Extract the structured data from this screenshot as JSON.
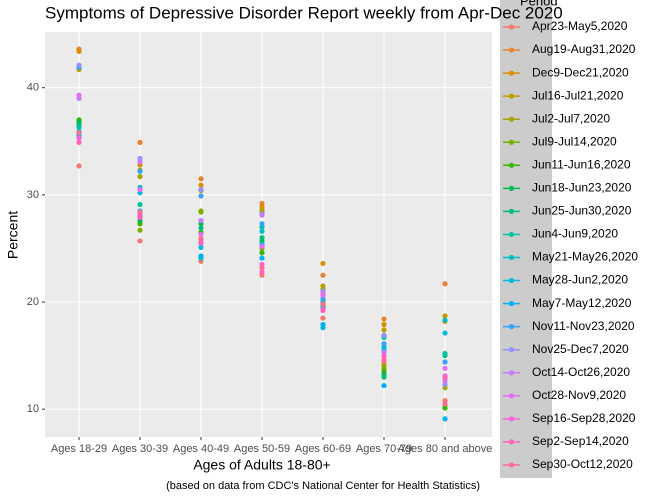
{
  "chart_data": {
    "type": "scatter",
    "title": "Symptoms of Depressive Disorder Report weekly from Apr-Dec 2020",
    "x_label": "Ages of Adults 18-80+",
    "y_label": "Percent",
    "caption": "(based on data from CDC's National Center for Health Statistics)",
    "legend_title": "Period",
    "categories": [
      "Ages 18-29",
      "Ages 30-39",
      "Ages 40-49",
      "Ages 50-59",
      "Ages 60-69",
      "Ages 70-79",
      "Ages 80 and above"
    ],
    "ylim": [
      7.4,
      45.2
    ],
    "yticks": [
      10,
      20,
      30,
      40
    ],
    "grid": true,
    "series": [
      {
        "name": "Apr23-May5,2020",
        "color": "#F8766D",
        "values": [
          32.7,
          25.7,
          23.8,
          22.5,
          18.5,
          14.2,
          10.8
        ]
      },
      {
        "name": "Aug19-Aug31,2020",
        "color": "#EA8331",
        "values": [
          43.6,
          34.9,
          31.5,
          29.2,
          22.5,
          18.4,
          21.7
        ]
      },
      {
        "name": "Dec9-Dec21,2020",
        "color": "#D89000",
        "values": [
          43.4,
          32.8,
          30.9,
          28.9,
          23.6,
          17.9,
          18.2
        ]
      },
      {
        "name": "Jul16-Jul21,2020",
        "color": "#C09B00",
        "values": [
          41.7,
          32.3,
          30.4,
          28.6,
          21.5,
          17.4,
          18.7
        ]
      },
      {
        "name": "Jul2-Jul7,2020",
        "color": "#A3A500",
        "values": [
          36.9,
          31.7,
          28.5,
          28.4,
          21.2,
          14.1,
          12.0
        ]
      },
      {
        "name": "Jul9-Jul14,2020",
        "color": "#7CAE00",
        "values": [
          36.6,
          26.7,
          28.4,
          25.0,
          20.3,
          13.8,
          10.4
        ]
      },
      {
        "name": "Jun11-Jun16,2020",
        "color": "#39B600",
        "values": [
          37.0,
          27.3,
          26.5,
          24.6,
          19.6,
          13.5,
          10.1
        ]
      },
      {
        "name": "Jun18-Jun23,2020",
        "color": "#00BB4E",
        "values": [
          36.8,
          27.6,
          27.3,
          25.7,
          19.9,
          13.2,
          13.1
        ]
      },
      {
        "name": "Jun25-Jun30,2020",
        "color": "#00BF7D",
        "values": [
          36.5,
          28.0,
          26.9,
          26.0,
          20.0,
          13.0,
          15.0
        ]
      },
      {
        "name": "Jun4-Jun9,2020",
        "color": "#00C1A3",
        "values": [
          36.3,
          29.1,
          24.2,
          27.0,
          19.5,
          16.7,
          15.2
        ]
      },
      {
        "name": "May21-May26,2020",
        "color": "#00BFC4",
        "values": [
          35.9,
          30.7,
          24.1,
          26.6,
          19.4,
          15.8,
          18.3
        ]
      },
      {
        "name": "May28-Jun2,2020",
        "color": "#00BAE0",
        "values": [
          35.6,
          30.2,
          25.1,
          25.4,
          17.6,
          15.5,
          17.1
        ]
      },
      {
        "name": "May7-May12,2020",
        "color": "#00B0F6",
        "values": [
          35.4,
          28.5,
          24.3,
          24.1,
          17.9,
          12.2,
          9.1
        ]
      },
      {
        "name": "Nov11-Nov23,2020",
        "color": "#35A2FF",
        "values": [
          41.9,
          32.2,
          29.9,
          27.3,
          20.3,
          16.1,
          14.4
        ]
      },
      {
        "name": "Nov25-Dec7,2020",
        "color": "#9590FF",
        "values": [
          42.1,
          33.4,
          30.5,
          28.2,
          21.0,
          16.9,
          12.3
        ]
      },
      {
        "name": "Oct14-Oct26,2020",
        "color": "#C77CFF",
        "values": [
          39.0,
          33.1,
          27.6,
          28.1,
          20.6,
          15.3,
          12.6
        ]
      },
      {
        "name": "Oct28-Nov9,2020",
        "color": "#E76BF3",
        "values": [
          39.3,
          30.5,
          26.3,
          25.2,
          20.8,
          14.9,
          13.8
        ]
      },
      {
        "name": "Sep16-Sep28,2020",
        "color": "#FA62DB",
        "values": [
          35.3,
          28.2,
          25.8,
          23.5,
          19.2,
          14.6,
          13.1
        ]
      },
      {
        "name": "Sep2-Sep14,2020",
        "color": "#FF62BC",
        "values": [
          34.9,
          27.9,
          25.5,
          22.8,
          19.3,
          15.0,
          12.9
        ]
      },
      {
        "name": "Sep30-Oct12,2020",
        "color": "#FF6C91",
        "values": [
          35.8,
          28.4,
          25.9,
          23.2,
          19.8,
          14.5,
          10.5
        ]
      }
    ]
  }
}
